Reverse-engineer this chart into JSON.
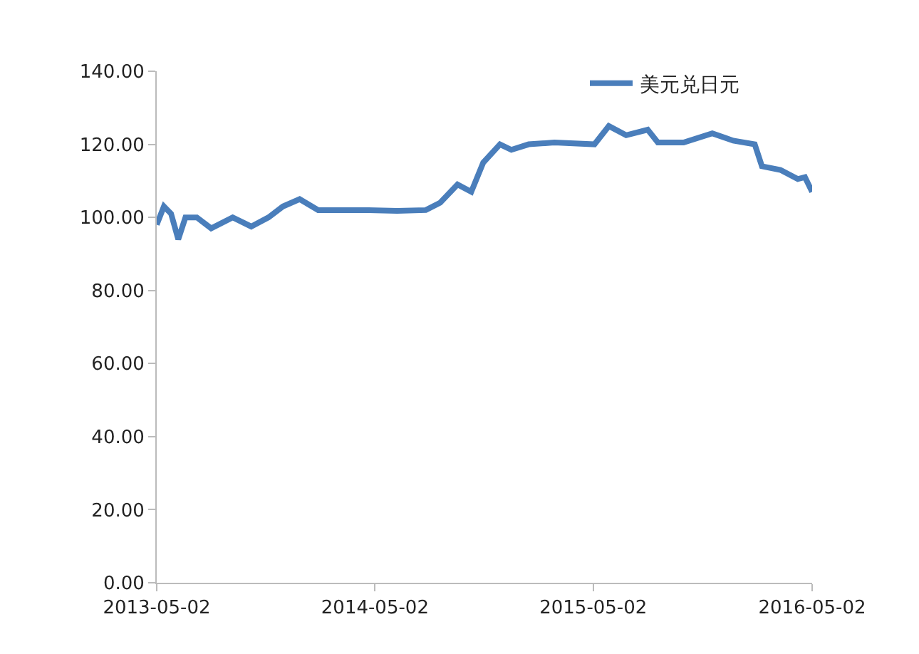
{
  "chart_data": {
    "type": "line",
    "x": [
      "2013-05-02",
      "2013-05-14",
      "2013-05-26",
      "2013-06-07",
      "2013-06-19",
      "2013-07-08",
      "2013-08-01",
      "2013-09-06",
      "2013-10-07",
      "2013-11-05",
      "2013-11-29",
      "2013-12-27",
      "2014-01-27",
      "2014-03-04",
      "2014-04-21",
      "2014-06-08",
      "2014-07-26",
      "2014-08-19",
      "2014-09-17",
      "2014-10-10",
      "2014-10-30",
      "2014-11-27",
      "2014-12-16",
      "2015-01-14",
      "2015-02-26",
      "2015-05-04",
      "2015-05-28",
      "2015-06-26",
      "2015-08-01",
      "2015-08-18",
      "2015-09-30",
      "2015-11-17",
      "2015-12-22",
      "2016-01-27",
      "2016-02-08",
      "2016-03-10",
      "2016-04-08",
      "2016-04-20",
      "2016-05-02"
    ],
    "series": [
      {
        "name": "美元兑日元",
        "color": "#4a7ebb",
        "values": [
          98,
          103,
          101,
          94,
          100,
          100,
          97,
          100,
          97.5,
          100,
          103,
          105,
          102,
          102,
          102,
          101.8,
          102,
          104,
          109,
          107,
          115,
          120,
          118.5,
          120,
          120.5,
          120,
          125,
          122.5,
          124,
          120.5,
          120.5,
          123,
          121,
          120,
          114,
          113,
          110.5,
          111,
          107
        ]
      }
    ],
    "xlim": [
      "2013-05-02",
      "2016-05-02"
    ],
    "xticks": [
      "2013-05-02",
      "2014-05-02",
      "2015-05-02",
      "2016-05-02"
    ],
    "ylim": [
      0,
      140
    ],
    "yticks": [
      {
        "value": 0,
        "label": "0.00"
      },
      {
        "value": 20,
        "label": "20.00"
      },
      {
        "value": 40,
        "label": "40.00"
      },
      {
        "value": 60,
        "label": "60.00"
      },
      {
        "value": 80,
        "label": "80.00"
      },
      {
        "value": 100,
        "label": "100.00"
      },
      {
        "value": 120,
        "label": "120.00"
      },
      {
        "value": 140,
        "label": "140.00"
      }
    ],
    "grid": false,
    "legend": "top right",
    "marker": "none",
    "line_style": "solid"
  }
}
